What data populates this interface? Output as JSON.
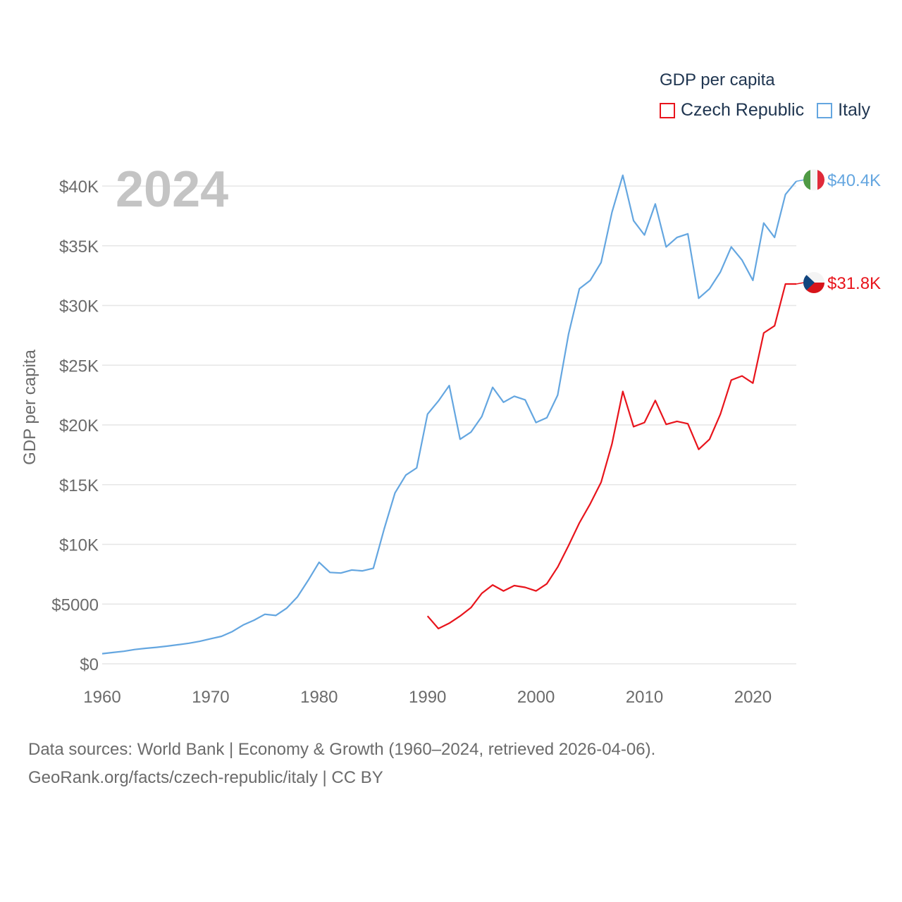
{
  "chart_data": {
    "type": "line",
    "title": "GDP per capita",
    "year_label": "2024",
    "ylabel": "GDP per capita",
    "xlabel": "",
    "xlim": [
      1960,
      2024
    ],
    "ylim": [
      0,
      42000
    ],
    "x_ticks": [
      1960,
      1970,
      1980,
      1990,
      2000,
      2010,
      2020
    ],
    "x_tick_labels": [
      "1960",
      "1970",
      "1980",
      "1990",
      "2000",
      "2010",
      "2020"
    ],
    "y_ticks": [
      0,
      5000,
      10000,
      15000,
      20000,
      25000,
      30000,
      35000,
      40000
    ],
    "y_tick_labels": [
      "$0",
      "$5000",
      "$10K",
      "$15K",
      "$20K",
      "$25K",
      "$30K",
      "$35K",
      "$40K"
    ],
    "grid": true,
    "legend_position": "top-right",
    "series": [
      {
        "name": "Czech Republic",
        "color": "#e8141c",
        "end_label": "$31.8K",
        "flag": "czech-flag",
        "x": [
          1990,
          1991,
          1992,
          1993,
          1994,
          1995,
          1996,
          1997,
          1998,
          1999,
          2000,
          2001,
          2002,
          2003,
          2004,
          2005,
          2006,
          2007,
          2008,
          2009,
          2010,
          2011,
          2012,
          2013,
          2014,
          2015,
          2016,
          2017,
          2018,
          2019,
          2020,
          2021,
          2022,
          2023,
          2024
        ],
        "values": [
          4000,
          2950,
          3400,
          4000,
          4700,
          5900,
          6600,
          6100,
          6550,
          6400,
          6100,
          6700,
          8100,
          9900,
          11800,
          13400,
          15200,
          18400,
          22800,
          19850,
          20200,
          22050,
          20050,
          20300,
          20100,
          17950,
          18800,
          20900,
          23750,
          24100,
          23500,
          27700,
          28300,
          31800,
          31800
        ]
      },
      {
        "name": "Italy",
        "color": "#64a6e0",
        "end_label": "$40.4K",
        "flag": "italy-flag",
        "x": [
          1960,
          1961,
          1962,
          1963,
          1964,
          1965,
          1966,
          1967,
          1968,
          1969,
          1970,
          1971,
          1972,
          1973,
          1974,
          1975,
          1976,
          1977,
          1978,
          1979,
          1980,
          1981,
          1982,
          1983,
          1984,
          1985,
          1986,
          1987,
          1988,
          1989,
          1990,
          1991,
          1992,
          1993,
          1994,
          1995,
          1996,
          1997,
          1998,
          1999,
          2000,
          2001,
          2002,
          2003,
          2004,
          2005,
          2006,
          2007,
          2008,
          2009,
          2010,
          2011,
          2012,
          2013,
          2014,
          2015,
          2016,
          2017,
          2018,
          2019,
          2020,
          2021,
          2022,
          2023,
          2024
        ],
        "values": [
          850,
          950,
          1050,
          1200,
          1300,
          1380,
          1480,
          1600,
          1720,
          1880,
          2100,
          2300,
          2700,
          3250,
          3650,
          4150,
          4050,
          4650,
          5600,
          7000,
          8500,
          7650,
          7600,
          7850,
          7780,
          8000,
          11300,
          14300,
          15800,
          16400,
          20900,
          22000,
          23300,
          18800,
          19400,
          20700,
          23150,
          21900,
          22400,
          22100,
          20200,
          20600,
          22500,
          27600,
          31400,
          32100,
          33600,
          37800,
          40900,
          37100,
          35900,
          38500,
          34900,
          35700,
          36000,
          30600,
          31400,
          32800,
          34900,
          33800,
          32100,
          36900,
          35700,
          39300,
          40400
        ]
      }
    ]
  },
  "legend": {
    "title": "GDP per capita",
    "items": [
      {
        "label": "Czech Republic",
        "color": "#e8141c"
      },
      {
        "label": "Italy",
        "color": "#64a6e0"
      }
    ]
  },
  "footer": {
    "sources": "Data sources: World Bank | Economy & Growth (1960–2024, retrieved 2026-04-06).",
    "credit": "GeoRank.org/facts/czech-republic/italy | CC BY"
  }
}
